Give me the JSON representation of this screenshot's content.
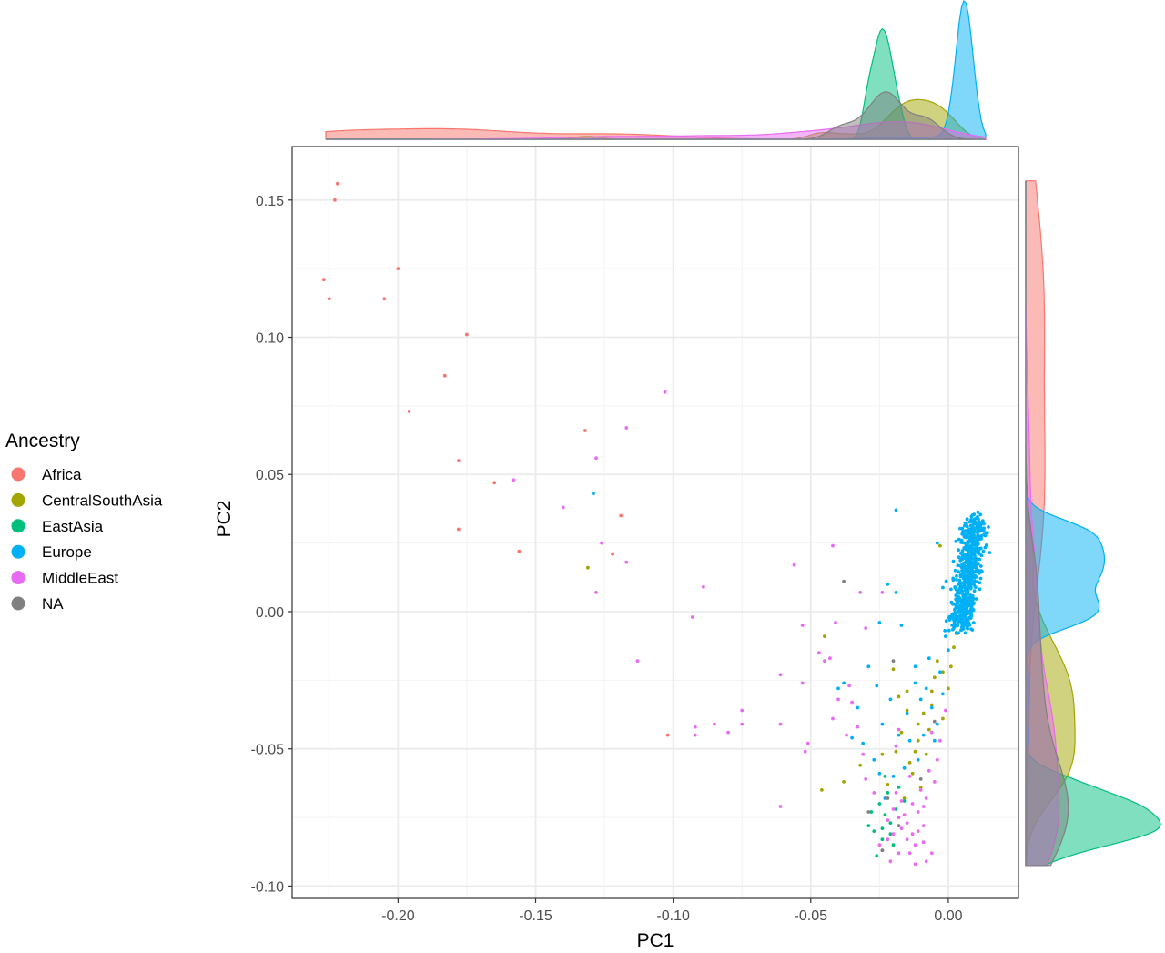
{
  "chart_data": {
    "type": "scatter",
    "title": "",
    "xlabel": "PC1",
    "ylabel": "PC2",
    "xlim": [
      -0.2385,
      0.0255
    ],
    "ylim": [
      -0.1045,
      0.1695
    ],
    "x_ticks": [
      -0.2,
      -0.15,
      -0.1,
      -0.05,
      0.0
    ],
    "x_tick_labels": [
      "-0.20",
      "-0.15",
      "-0.10",
      "-0.05",
      "0.00"
    ],
    "y_ticks": [
      -0.1,
      -0.05,
      0.0,
      0.05,
      0.1,
      0.15
    ],
    "y_tick_labels": [
      "-0.10",
      "-0.05",
      "0.00",
      "0.05",
      "0.10",
      "0.15"
    ],
    "grid": true,
    "marginal_plots": "density",
    "legend": {
      "title": "Ancestry",
      "position": "left",
      "entries": [
        {
          "label": "Africa",
          "color": "#F8766D"
        },
        {
          "label": "CentralSouthAsia",
          "color": "#A3A500"
        },
        {
          "label": "EastAsia",
          "color": "#00BF7D"
        },
        {
          "label": "Europe",
          "color": "#00B0F6"
        },
        {
          "label": "MiddleEast",
          "color": "#E76BF3"
        },
        {
          "label": "NA",
          "color": "#808080"
        }
      ]
    },
    "series": [
      {
        "name": "Africa",
        "color": "#F8766D",
        "points": [
          [
            -0.222,
            0.156
          ],
          [
            -0.223,
            0.15
          ],
          [
            -0.227,
            0.121
          ],
          [
            -0.225,
            0.114
          ],
          [
            -0.205,
            0.114
          ],
          [
            -0.2,
            0.125
          ],
          [
            -0.175,
            0.101
          ],
          [
            -0.183,
            0.086
          ],
          [
            -0.196,
            0.073
          ],
          [
            -0.178,
            0.055
          ],
          [
            -0.165,
            0.047
          ],
          [
            -0.178,
            0.03
          ],
          [
            -0.156,
            0.022
          ],
          [
            -0.132,
            0.066
          ],
          [
            -0.119,
            0.035
          ],
          [
            -0.122,
            0.021
          ],
          [
            -0.102,
            -0.045
          ]
        ]
      },
      {
        "name": "CentralSouthAsia",
        "color": "#A3A500",
        "points": [
          [
            -0.131,
            0.016
          ],
          [
            -0.045,
            -0.009
          ],
          [
            -0.032,
            -0.056
          ],
          [
            -0.046,
            -0.065
          ],
          [
            -0.038,
            -0.062
          ],
          [
            -0.018,
            -0.031
          ],
          [
            -0.015,
            -0.036
          ],
          [
            -0.011,
            -0.041
          ],
          [
            -0.017,
            -0.044
          ],
          [
            -0.012,
            -0.051
          ],
          [
            -0.014,
            -0.055
          ],
          [
            -0.013,
            -0.059
          ],
          [
            -0.008,
            -0.052
          ],
          [
            -0.006,
            -0.034
          ],
          [
            -0.005,
            -0.024
          ],
          [
            -0.004,
            -0.018
          ],
          [
            -0.002,
            -0.022
          ],
          [
            0.0,
            -0.028
          ],
          [
            0.001,
            -0.02
          ],
          [
            0.002,
            -0.013
          ],
          [
            0.003,
            -0.008
          ],
          [
            -0.003,
            0.024
          ],
          [
            -0.009,
            -0.037
          ],
          [
            -0.007,
            -0.043
          ],
          [
            -0.019,
            -0.051
          ],
          [
            -0.022,
            -0.063
          ],
          [
            -0.024,
            -0.052
          ],
          [
            -0.01,
            -0.064
          ],
          [
            -0.015,
            -0.029
          ],
          [
            0.004,
            -0.002
          ],
          [
            -0.02,
            -0.021
          ],
          [
            -0.002,
            -0.039
          ],
          [
            -0.006,
            -0.029
          ],
          [
            -0.011,
            -0.047
          ],
          [
            -0.016,
            -0.068
          ]
        ]
      },
      {
        "name": "EastAsia",
        "color": "#00BF7D",
        "points": [
          [
            -0.025,
            -0.07
          ],
          [
            -0.023,
            -0.074
          ],
          [
            -0.021,
            -0.077
          ],
          [
            -0.027,
            -0.08
          ],
          [
            -0.024,
            -0.083
          ],
          [
            -0.022,
            -0.066
          ],
          [
            -0.019,
            -0.072
          ],
          [
            -0.026,
            -0.089
          ],
          [
            -0.029,
            -0.078
          ],
          [
            -0.02,
            -0.085
          ],
          [
            -0.023,
            -0.06
          ],
          [
            -0.018,
            -0.064
          ],
          [
            -0.016,
            -0.069
          ],
          [
            -0.024,
            -0.079
          ],
          [
            -0.028,
            -0.073
          ],
          [
            -0.021,
            -0.081
          ]
        ]
      },
      {
        "name": "Europe",
        "color": "#00B0F6",
        "points": [
          [
            -0.129,
            0.043
          ],
          [
            -0.019,
            0.037
          ],
          [
            -0.004,
            0.025
          ],
          [
            -0.022,
            0.01
          ],
          [
            -0.019,
            0.007
          ],
          [
            -0.025,
            -0.004
          ],
          [
            -0.017,
            -0.005
          ],
          [
            -0.04,
            -0.028
          ],
          [
            -0.038,
            -0.026
          ],
          [
            -0.031,
            -0.048
          ],
          [
            -0.024,
            -0.041
          ],
          [
            -0.027,
            -0.054
          ],
          [
            -0.029,
            -0.02
          ],
          [
            -0.026,
            -0.027
          ],
          [
            -0.021,
            -0.032
          ],
          [
            -0.018,
            -0.045
          ],
          [
            -0.015,
            -0.037
          ],
          [
            -0.012,
            -0.026
          ],
          [
            -0.01,
            -0.032
          ],
          [
            -0.008,
            -0.028
          ],
          [
            -0.006,
            -0.035
          ],
          [
            -0.004,
            -0.041
          ],
          [
            -0.002,
            -0.03
          ],
          [
            -0.005,
            -0.047
          ],
          [
            -0.009,
            -0.045
          ],
          [
            -0.014,
            -0.047
          ],
          [
            -0.011,
            -0.054
          ],
          [
            -0.02,
            -0.06
          ],
          [
            -0.023,
            -0.068
          ],
          [
            -0.025,
            -0.059
          ],
          [
            -0.003,
            -0.022
          ],
          [
            0.0,
            -0.014
          ],
          [
            0.002,
            -0.006
          ],
          [
            -0.012,
            -0.02
          ],
          [
            -0.007,
            -0.017
          ],
          [
            -0.001,
            -0.009
          ],
          [
            0.004,
            0.002
          ],
          [
            -0.016,
            -0.057
          ],
          [
            -0.033,
            -0.035
          ],
          [
            -0.035,
            -0.046
          ]
        ]
      },
      {
        "name": "MiddleEast",
        "color": "#E76BF3",
        "points": [
          [
            -0.103,
            0.08
          ],
          [
            -0.117,
            0.067
          ],
          [
            -0.128,
            0.056
          ],
          [
            -0.158,
            0.048
          ],
          [
            -0.14,
            0.038
          ],
          [
            -0.126,
            0.025
          ],
          [
            -0.117,
            0.018
          ],
          [
            -0.128,
            0.007
          ],
          [
            -0.089,
            0.009
          ],
          [
            -0.093,
            -0.002
          ],
          [
            -0.113,
            -0.018
          ],
          [
            -0.092,
            -0.042
          ],
          [
            -0.092,
            -0.045
          ],
          [
            -0.085,
            -0.041
          ],
          [
            -0.08,
            -0.044
          ],
          [
            -0.075,
            -0.036
          ],
          [
            -0.075,
            -0.041
          ],
          [
            -0.061,
            -0.071
          ],
          [
            -0.061,
            -0.041
          ],
          [
            -0.061,
            -0.023
          ],
          [
            -0.056,
            0.017
          ],
          [
            -0.053,
            -0.005
          ],
          [
            -0.053,
            -0.026
          ],
          [
            -0.051,
            -0.048
          ],
          [
            -0.052,
            -0.051
          ],
          [
            -0.047,
            -0.015
          ],
          [
            -0.045,
            -0.018
          ],
          [
            -0.043,
            -0.017
          ],
          [
            -0.042,
            0.024
          ],
          [
            -0.041,
            -0.004
          ],
          [
            -0.04,
            -0.032
          ],
          [
            -0.042,
            -0.039
          ],
          [
            -0.037,
            -0.045
          ],
          [
            -0.036,
            -0.027
          ],
          [
            -0.035,
            -0.033
          ],
          [
            -0.033,
            -0.042
          ],
          [
            -0.031,
            -0.052
          ],
          [
            -0.03,
            -0.006
          ],
          [
            -0.032,
            0.007
          ],
          [
            -0.024,
            0.007
          ],
          [
            -0.018,
            -0.043
          ],
          [
            -0.019,
            -0.049
          ],
          [
            -0.014,
            -0.06
          ],
          [
            -0.011,
            -0.073
          ],
          [
            -0.009,
            -0.078
          ],
          [
            -0.012,
            -0.085
          ],
          [
            -0.014,
            -0.088
          ],
          [
            -0.017,
            -0.079
          ],
          [
            -0.02,
            -0.072
          ],
          [
            -0.022,
            -0.083
          ],
          [
            -0.024,
            -0.087
          ],
          [
            -0.021,
            -0.091
          ],
          [
            -0.018,
            -0.088
          ],
          [
            -0.013,
            -0.081
          ],
          [
            -0.009,
            -0.084
          ],
          [
            -0.006,
            -0.088
          ],
          [
            -0.008,
            -0.091
          ],
          [
            -0.015,
            -0.077
          ],
          [
            -0.019,
            -0.066
          ],
          [
            -0.017,
            -0.069
          ],
          [
            -0.013,
            -0.07
          ],
          [
            -0.01,
            -0.065
          ],
          [
            -0.007,
            -0.058
          ],
          [
            -0.005,
            -0.062
          ],
          [
            -0.008,
            -0.068
          ],
          [
            -0.016,
            -0.074
          ],
          [
            -0.02,
            -0.081
          ],
          [
            -0.025,
            -0.085
          ],
          [
            -0.012,
            -0.092
          ],
          [
            -0.004,
            -0.054
          ],
          [
            -0.003,
            -0.047
          ],
          [
            -0.001,
            -0.036
          ],
          [
            -0.006,
            -0.044
          ],
          [
            -0.027,
            -0.066
          ],
          [
            -0.03,
            -0.061
          ],
          [
            -0.022,
            -0.076
          ],
          [
            -0.018,
            -0.075
          ],
          [
            -0.011,
            -0.08
          ],
          [
            -0.015,
            -0.083
          ],
          [
            -0.009,
            -0.071
          ]
        ]
      },
      {
        "name": "NA",
        "color": "#808080",
        "points": [
          [
            -0.038,
            0.011
          ],
          [
            -0.02,
            -0.018
          ],
          [
            -0.022,
            -0.068
          ],
          [
            -0.024,
            -0.087
          ],
          [
            -0.029,
            -0.073
          ],
          [
            -0.018,
            -0.078
          ],
          [
            -0.01,
            -0.061
          ],
          [
            -0.005,
            -0.04
          ]
        ]
      }
    ],
    "dense_cluster": {
      "name": "Europe",
      "color": "#00B0F6",
      "x_range": [
        0.0,
        0.014
      ],
      "y_range": [
        -0.01,
        0.037
      ],
      "count": 650
    }
  }
}
